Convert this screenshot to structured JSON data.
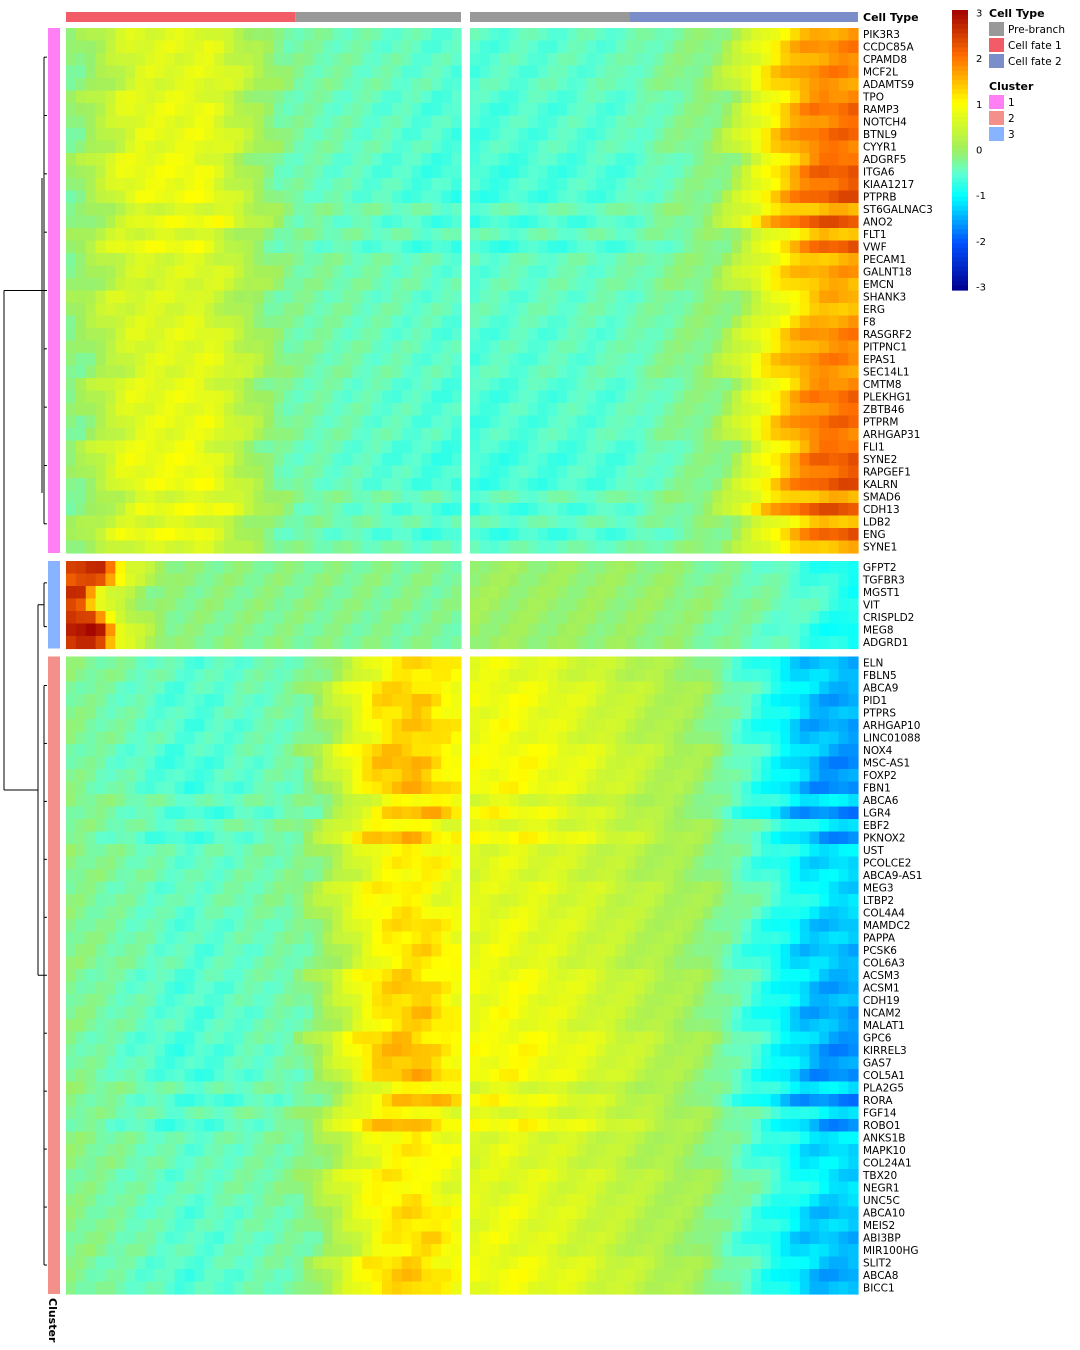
{
  "chart_data": {
    "type": "heatmap",
    "title": "",
    "column_annotation_title": "Cell Type",
    "row_annotation_title": "Cluster",
    "color_scale": {
      "min": -3,
      "max": 3,
      "ticks": [
        "3",
        "2",
        "1",
        "0",
        "-1",
        "-2",
        "-3"
      ],
      "stops": [
        {
          "v": -3,
          "c": "#00008f"
        },
        {
          "v": -2,
          "c": "#0050ff"
        },
        {
          "v": -1,
          "c": "#00ffff"
        },
        {
          "v": -0.5,
          "c": "#60ffd0"
        },
        {
          "v": 0,
          "c": "#9ff060"
        },
        {
          "v": 1,
          "c": "#ffff00"
        },
        {
          "v": 2,
          "c": "#ff7000"
        },
        {
          "v": 3,
          "c": "#a00000"
        }
      ]
    },
    "cell_type_legend": [
      {
        "label": "Pre-branch",
        "color": "#999999"
      },
      {
        "label": "Cell fate 1",
        "color": "#f25c67"
      },
      {
        "label": "Cell fate 2",
        "color": "#7b8ec9"
      }
    ],
    "cluster_legend": [
      {
        "label": "1",
        "color": "#ff7ff5"
      },
      {
        "label": "2",
        "color": "#f4908a"
      },
      {
        "label": "3",
        "color": "#88b4ff"
      }
    ],
    "left_panel_annotation": [
      {
        "type": "Cell fate 1",
        "fraction": 0.58
      },
      {
        "type": "Pre-branch",
        "fraction": 0.42
      }
    ],
    "right_panel_annotation": [
      {
        "type": "Pre-branch",
        "fraction": 0.41
      },
      {
        "type": "Cell fate 2",
        "fraction": 0.59
      }
    ],
    "clusters": [
      {
        "cluster": "1",
        "genes": [
          "PIK3R3",
          "CCDC85A",
          "CPAMD8",
          "MCF2L",
          "ADAMTS9",
          "TPO",
          "RAMP3",
          "NOTCH4",
          "BTNL9",
          "CYYR1",
          "ADGRF5",
          "ITGA6",
          "KIAA1217",
          "PTPRB",
          "ST6GALNAC3",
          "ANO2",
          "FLT1",
          "VWF",
          "PECAM1",
          "GALNT18",
          "EMCN",
          "SHANK3",
          "ERG",
          "F8",
          "RASGRF2",
          "PITPNC1",
          "EPAS1",
          "SEC14L1",
          "CMTM8",
          "PLEKHG1",
          "ZBTB46",
          "PTPRM",
          "ARHGAP31",
          "FLI1",
          "SYNE2",
          "RAPGEF1",
          "KALRN",
          "SMAD6",
          "CDH13",
          "LDB2",
          "ENG",
          "SYNE1"
        ],
        "left_profile": [
          [
            0,
            -0.2
          ],
          [
            0.15,
            0.7
          ],
          [
            0.35,
            0.8
          ],
          [
            0.55,
            -0.3
          ],
          [
            1,
            -0.6
          ]
        ],
        "right_profile": [
          [
            0,
            -0.6
          ],
          [
            0.4,
            -0.5
          ],
          [
            0.65,
            -0.1
          ],
          [
            0.8,
            1.2
          ],
          [
            0.9,
            1.9
          ],
          [
            1,
            2.0
          ]
        ]
      },
      {
        "cluster": "3",
        "genes": [
          "GFPT2",
          "TGFBR3",
          "MGST1",
          "VIT",
          "CRISPLD2",
          "MEG8",
          "ADGRD1"
        ],
        "left_profile": [
          [
            0,
            3.0
          ],
          [
            0.06,
            3.0
          ],
          [
            0.12,
            0.8
          ],
          [
            0.25,
            -0.2
          ],
          [
            1,
            -0.3
          ]
        ],
        "right_profile": [
          [
            0,
            0.0
          ],
          [
            0.5,
            -0.1
          ],
          [
            0.8,
            -0.5
          ],
          [
            1,
            -1.1
          ]
        ]
      },
      {
        "cluster": "2",
        "genes": [
          "ELN",
          "FBLN5",
          "ABCA9",
          "PID1",
          "PTPRS",
          "ARHGAP10",
          "LINC01088",
          "NOX4",
          "MSC-AS1",
          "FOXP2",
          "FBN1",
          "ABCA6",
          "LGR4",
          "EBF2",
          "PKNOX2",
          "UST",
          "PCOLCE2",
          "ABCA9-AS1",
          "MEG3",
          "LTBP2",
          "COL4A4",
          "MAMDC2",
          "PAPPA",
          "PCSK6",
          "COL6A3",
          "ACSM3",
          "ACSM1",
          "CDH19",
          "NCAM2",
          "MALAT1",
          "GPC6",
          "KIRREL3",
          "GAS7",
          "COL5A1",
          "PLA2G5",
          "RORA",
          "FGF14",
          "ROBO1",
          "ANKS1B",
          "MAPK10",
          "COL24A1",
          "TBX20",
          "NEGR1",
          "UNC5C",
          "ABCA10",
          "MEIS2",
          "ABI3BP",
          "MIR100HG",
          "SLIT2",
          "ABCA8",
          "BICC1"
        ],
        "left_profile": [
          [
            0,
            -0.2
          ],
          [
            0.3,
            -0.6
          ],
          [
            0.6,
            -0.3
          ],
          [
            0.8,
            1.2
          ],
          [
            0.9,
            1.4
          ],
          [
            1,
            0.9
          ]
        ],
        "right_profile": [
          [
            0,
            0.8
          ],
          [
            0.1,
            0.9
          ],
          [
            0.3,
            0.6
          ],
          [
            0.6,
            0.0
          ],
          [
            0.8,
            -0.9
          ],
          [
            0.9,
            -1.4
          ],
          [
            1,
            -1.5
          ]
        ]
      }
    ]
  }
}
